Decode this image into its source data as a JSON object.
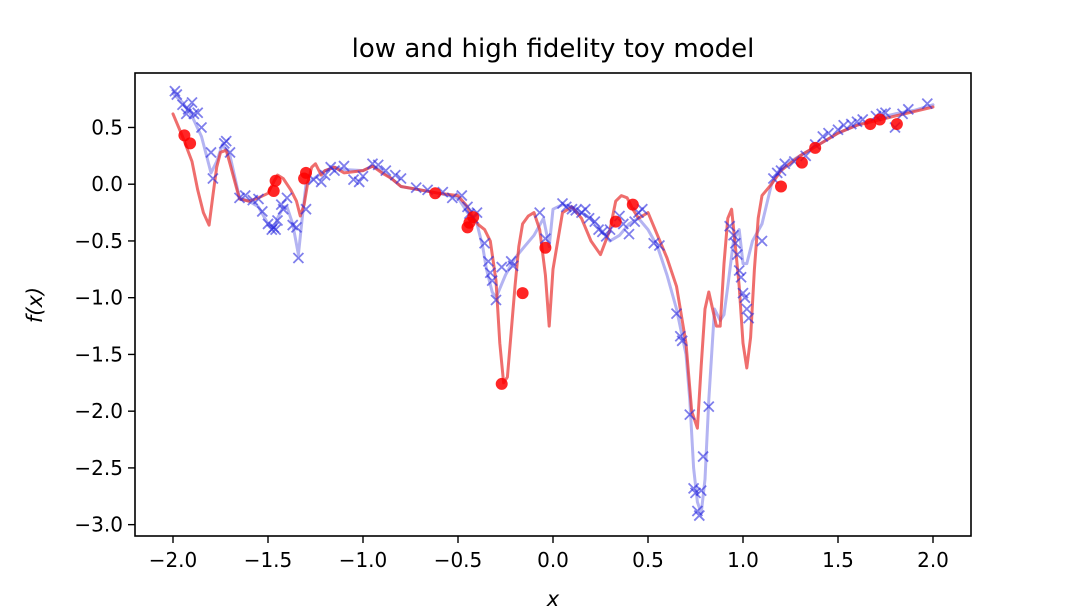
{
  "chart_data": {
    "type": "line",
    "title": "low and high fidelity toy model",
    "xlabel": "x",
    "ylabel": "f(x)",
    "xlim": [
      -2.2,
      2.2
    ],
    "ylim": [
      -3.1,
      0.98
    ],
    "x_ticks": [
      -2.0,
      -1.5,
      -1.0,
      -0.5,
      0.0,
      0.5,
      1.0,
      1.5,
      2.0
    ],
    "x_tick_labels": [
      "−2.0",
      "−1.5",
      "−1.0",
      "−0.5",
      "0.0",
      "0.5",
      "1.0",
      "1.5",
      "2.0"
    ],
    "y_ticks": [
      0.5,
      0.0,
      -0.5,
      -1.0,
      -1.5,
      -2.0,
      -2.5,
      -3.0
    ],
    "y_tick_labels": [
      "0.5",
      "0.0",
      "−0.5",
      "−1.0",
      "−1.5",
      "−2.0",
      "−2.5",
      "−3.0"
    ],
    "grid": false,
    "series": [
      {
        "kind": "line",
        "color": "#6a6ae6",
        "opacity": 0.5,
        "x": [
          -2.0,
          -1.95,
          -1.9,
          -1.85,
          -1.8,
          -1.77,
          -1.74,
          -1.7,
          -1.65,
          -1.6,
          -1.55,
          -1.5,
          -1.47,
          -1.45,
          -1.42,
          -1.4,
          -1.37,
          -1.34,
          -1.32,
          -1.3,
          -1.25,
          -1.2,
          -1.15,
          -1.1,
          -1.0,
          -0.95,
          -0.9,
          -0.85,
          -0.8,
          -0.7,
          -0.6,
          -0.5,
          -0.45,
          -0.42,
          -0.4,
          -0.37,
          -0.35,
          -0.32,
          -0.3,
          -0.25,
          -0.2,
          -0.15,
          -0.1,
          -0.05,
          -0.02,
          0.0,
          0.05,
          0.1,
          0.15,
          0.2,
          0.25,
          0.3,
          0.35,
          0.4,
          0.45,
          0.5,
          0.55,
          0.6,
          0.65,
          0.7,
          0.72,
          0.74,
          0.76,
          0.78,
          0.8,
          0.82,
          0.85,
          0.88,
          0.9,
          0.92,
          0.95,
          0.98,
          1.0,
          1.02,
          1.05,
          1.1,
          1.15,
          1.2,
          1.3,
          1.4,
          1.5,
          1.6,
          1.7,
          1.8,
          1.9,
          2.0
        ],
        "y": [
          0.8,
          0.72,
          0.6,
          0.42,
          0.1,
          0.2,
          0.35,
          0.25,
          -0.12,
          -0.15,
          -0.2,
          -0.35,
          -0.4,
          -0.3,
          -0.2,
          -0.2,
          -0.35,
          -0.62,
          -0.3,
          0.0,
          0.06,
          0.12,
          0.15,
          0.13,
          0.12,
          0.16,
          0.12,
          0.05,
          -0.02,
          -0.05,
          -0.08,
          -0.12,
          -0.25,
          -0.3,
          -0.35,
          -0.55,
          -0.75,
          -0.95,
          -1.0,
          -0.8,
          -0.65,
          -0.55,
          -0.45,
          -0.3,
          -0.55,
          -0.22,
          -0.18,
          -0.2,
          -0.25,
          -0.3,
          -0.4,
          -0.5,
          -0.45,
          -0.35,
          -0.3,
          -0.4,
          -0.55,
          -0.8,
          -1.1,
          -1.5,
          -1.9,
          -2.5,
          -2.8,
          -2.9,
          -2.6,
          -1.9,
          -1.1,
          -1.2,
          -1.15,
          -0.9,
          -0.5,
          -0.4,
          -0.7,
          -0.7,
          -0.5,
          -0.35,
          0.0,
          0.15,
          0.25,
          0.35,
          0.45,
          0.52,
          0.58,
          0.62,
          0.65,
          0.7
        ]
      },
      {
        "kind": "line",
        "color": "#e8302f",
        "opacity": 0.7,
        "x": [
          -2.0,
          -1.95,
          -1.9,
          -1.87,
          -1.84,
          -1.81,
          -1.79,
          -1.77,
          -1.75,
          -1.72,
          -1.7,
          -1.65,
          -1.6,
          -1.55,
          -1.5,
          -1.47,
          -1.45,
          -1.42,
          -1.38,
          -1.35,
          -1.33,
          -1.31,
          -1.29,
          -1.27,
          -1.25,
          -1.22,
          -1.2,
          -1.15,
          -1.1,
          -1.0,
          -0.95,
          -0.9,
          -0.85,
          -0.8,
          -0.7,
          -0.6,
          -0.5,
          -0.45,
          -0.42,
          -0.39,
          -0.36,
          -0.33,
          -0.3,
          -0.28,
          -0.26,
          -0.24,
          -0.22,
          -0.2,
          -0.18,
          -0.16,
          -0.13,
          -0.1,
          -0.07,
          -0.04,
          -0.02,
          0.0,
          0.05,
          0.1,
          0.15,
          0.2,
          0.25,
          0.3,
          0.33,
          0.36,
          0.39,
          0.42,
          0.45,
          0.5,
          0.55,
          0.6,
          0.65,
          0.7,
          0.73,
          0.76,
          0.78,
          0.8,
          0.82,
          0.84,
          0.86,
          0.88,
          0.9,
          0.92,
          0.94,
          0.96,
          0.98,
          1.0,
          1.02,
          1.04,
          1.06,
          1.08,
          1.1,
          1.15,
          1.2,
          1.3,
          1.4,
          1.5,
          1.6,
          1.7,
          1.8,
          1.9,
          2.0
        ],
        "y": [
          0.62,
          0.42,
          0.2,
          -0.05,
          -0.25,
          -0.36,
          -0.1,
          0.15,
          0.28,
          0.3,
          0.18,
          -0.13,
          -0.15,
          -0.12,
          -0.08,
          0.02,
          0.08,
          0.05,
          -0.05,
          -0.15,
          -0.28,
          -0.18,
          0.02,
          0.15,
          0.18,
          0.08,
          0.12,
          0.15,
          0.1,
          0.12,
          0.16,
          0.1,
          0.05,
          -0.02,
          -0.05,
          -0.08,
          -0.1,
          -0.2,
          -0.3,
          -0.36,
          -0.4,
          -0.5,
          -0.85,
          -1.4,
          -1.75,
          -1.7,
          -1.3,
          -0.9,
          -0.55,
          -0.35,
          -0.28,
          -0.25,
          -0.4,
          -0.8,
          -1.25,
          -0.75,
          -0.25,
          -0.2,
          -0.3,
          -0.5,
          -0.62,
          -0.4,
          -0.15,
          -0.1,
          -0.12,
          -0.22,
          -0.3,
          -0.25,
          -0.45,
          -0.65,
          -0.9,
          -1.4,
          -2.0,
          -2.15,
          -1.6,
          -1.1,
          -0.95,
          -1.1,
          -1.25,
          -1.25,
          -0.7,
          -0.3,
          -0.22,
          -0.55,
          -0.9,
          -1.4,
          -1.62,
          -1.35,
          -0.75,
          -0.3,
          -0.1,
          0.0,
          0.12,
          0.25,
          0.35,
          0.45,
          0.52,
          0.56,
          0.6,
          0.64,
          0.68
        ]
      },
      {
        "kind": "scatter",
        "marker": "x",
        "color": "#2a2ae0",
        "opacity": 0.6,
        "x": [
          -1.99,
          -1.98,
          -1.95,
          -1.93,
          -1.92,
          -1.9,
          -1.89,
          -1.87,
          -1.85,
          -1.8,
          -1.79,
          -1.73,
          -1.72,
          -1.7,
          -1.65,
          -1.62,
          -1.58,
          -1.55,
          -1.53,
          -1.5,
          -1.48,
          -1.47,
          -1.46,
          -1.45,
          -1.43,
          -1.42,
          -1.4,
          -1.37,
          -1.35,
          -1.34,
          -1.3,
          -1.26,
          -1.22,
          -1.2,
          -1.17,
          -1.15,
          -1.1,
          -1.05,
          -1.02,
          -1.0,
          -0.95,
          -0.92,
          -0.88,
          -0.83,
          -0.8,
          -0.72,
          -0.66,
          -0.58,
          -0.53,
          -0.48,
          -0.45,
          -0.44,
          -0.42,
          -0.4,
          -0.36,
          -0.34,
          -0.33,
          -0.32,
          -0.3,
          -0.27,
          -0.22,
          -0.21,
          -0.07,
          -0.04,
          0.05,
          0.07,
          0.1,
          0.12,
          0.15,
          0.17,
          0.19,
          0.22,
          0.24,
          0.26,
          0.28,
          0.3,
          0.35,
          0.37,
          0.4,
          0.43,
          0.45,
          0.47,
          0.53,
          0.56,
          0.65,
          0.67,
          0.68,
          0.72,
          0.74,
          0.75,
          0.76,
          0.77,
          0.78,
          0.79,
          0.82,
          0.93,
          0.95,
          0.96,
          0.97,
          0.98,
          0.99,
          1.0,
          1.01,
          1.02,
          1.03,
          1.1,
          1.16,
          1.18,
          1.2,
          1.22,
          1.27,
          1.33,
          1.38,
          1.42,
          1.45,
          1.5,
          1.53,
          1.57,
          1.6,
          1.63,
          1.7,
          1.73,
          1.75,
          1.8,
          1.84,
          1.87,
          1.97
        ],
        "y": [
          0.82,
          0.79,
          0.7,
          0.62,
          0.66,
          0.72,
          0.62,
          0.63,
          0.5,
          0.28,
          0.05,
          0.36,
          0.38,
          0.28,
          -0.12,
          -0.1,
          -0.14,
          -0.13,
          -0.24,
          -0.35,
          -0.4,
          -0.38,
          -0.4,
          -0.32,
          -0.18,
          -0.22,
          -0.12,
          -0.36,
          -0.38,
          -0.65,
          -0.22,
          0.04,
          0.02,
          0.08,
          0.15,
          0.12,
          0.16,
          0.04,
          0.02,
          0.07,
          0.18,
          0.17,
          0.12,
          0.08,
          0.05,
          -0.03,
          -0.05,
          -0.07,
          -0.12,
          -0.1,
          -0.2,
          -0.26,
          -0.3,
          -0.25,
          -0.52,
          -0.68,
          -0.78,
          -0.85,
          -1.02,
          -0.73,
          -0.68,
          -0.72,
          -0.25,
          -0.48,
          -0.17,
          -0.2,
          -0.22,
          -0.23,
          -0.25,
          -0.22,
          -0.3,
          -0.33,
          -0.4,
          -0.42,
          -0.46,
          -0.4,
          -0.28,
          -0.35,
          -0.44,
          -0.33,
          -0.25,
          -0.22,
          -0.52,
          -0.54,
          -1.14,
          -1.34,
          -1.38,
          -2.03,
          -2.68,
          -2.72,
          -2.88,
          -2.92,
          -2.7,
          -2.4,
          -1.96,
          -0.37,
          -0.45,
          -0.52,
          -0.62,
          -0.76,
          -0.82,
          -0.96,
          -1.0,
          -1.1,
          -1.18,
          -0.5,
          0.05,
          0.1,
          0.12,
          0.18,
          0.2,
          0.25,
          0.35,
          0.42,
          0.45,
          0.48,
          0.52,
          0.53,
          0.55,
          0.57,
          0.6,
          0.62,
          0.63,
          0.5,
          0.62,
          0.66,
          0.71
        ]
      },
      {
        "kind": "scatter",
        "marker": "o",
        "color": "#ff0000",
        "opacity": 0.85,
        "x": [
          -1.94,
          -1.91,
          -1.47,
          -1.46,
          -1.31,
          -1.3,
          -0.62,
          -0.45,
          -0.44,
          -0.42,
          -0.27,
          -0.16,
          -0.04,
          0.33,
          0.42,
          1.2,
          1.31,
          1.38,
          1.67,
          1.72,
          1.81
        ],
        "y": [
          0.43,
          0.36,
          -0.06,
          0.03,
          0.05,
          0.1,
          -0.08,
          -0.38,
          -0.34,
          -0.29,
          -1.76,
          -0.96,
          -0.56,
          -0.33,
          -0.18,
          -0.02,
          0.19,
          0.32,
          0.53,
          0.57,
          0.53
        ]
      }
    ]
  }
}
